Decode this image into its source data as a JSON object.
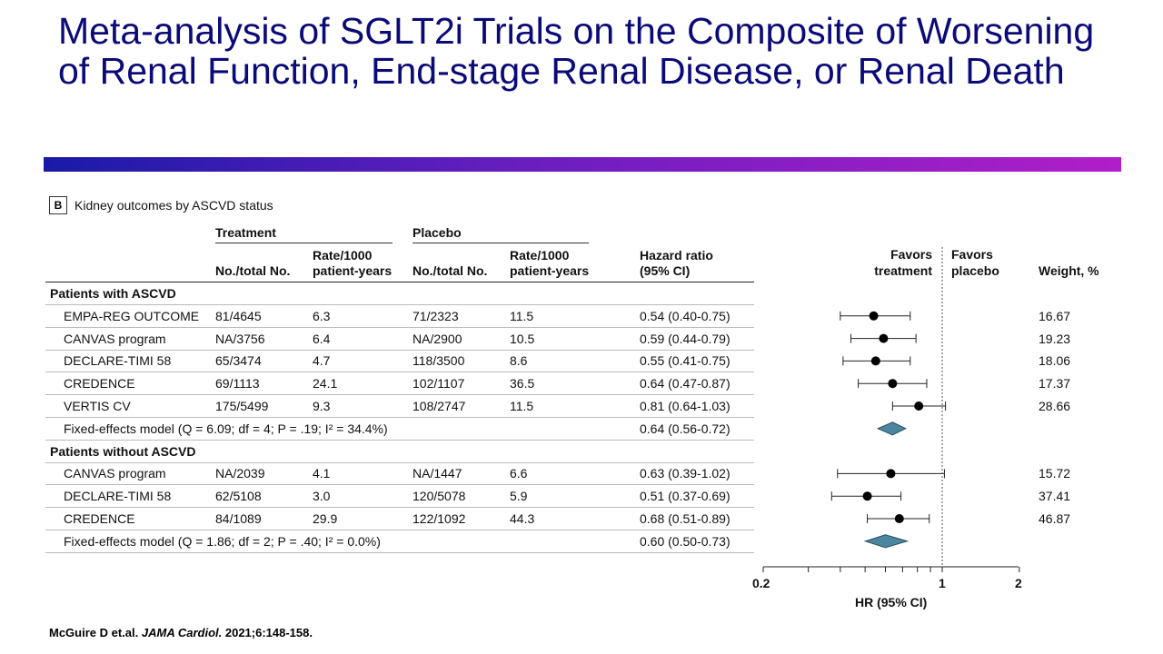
{
  "title": "Meta-analysis of SGLT2i Trials on the Composite of Worsening of Renal Function, End-stage Renal Disease, or Renal Death",
  "panel": {
    "letter": "B",
    "title": "Kidney outcomes by ASCVD status"
  },
  "headers": {
    "treatment": "Treatment",
    "placebo": "Placebo",
    "no_total": "No./total No.",
    "rate1": "Rate/1000",
    "rate2": "patient-years",
    "hr1": "Hazard ratio",
    "hr2": "(95% CI)",
    "favors_treatment1": "Favors",
    "favors_treatment2": "treatment",
    "favors_placebo1": "Favors",
    "favors_placebo2": "placebo",
    "weight": "Weight, %"
  },
  "citation": {
    "authors": "McGuire D et.al.",
    "journal": "JAMA Cardiol.",
    "ref": "2021;6:148-158."
  },
  "colors": {
    "title": "#0a0a78",
    "diamond": "#4a86a0"
  },
  "chart_data": {
    "type": "forest",
    "xlabel": "HR (95% CI)",
    "xscale": "log",
    "xlim": [
      0.2,
      2
    ],
    "xticks": [
      0.2,
      0.3,
      0.4,
      0.5,
      0.6,
      0.7,
      0.8,
      0.9,
      1,
      2
    ],
    "xtick_labels": [
      "0.2",
      "1",
      "2"
    ],
    "reference_line": 1,
    "rows": [
      {
        "kind": "group",
        "label": "Patients with ASCVD"
      },
      {
        "kind": "study",
        "label": "EMPA-REG OUTCOME",
        "t_n": "81/4645",
        "t_rate": "6.3",
        "p_n": "71/2323",
        "p_rate": "11.5",
        "hr_text": "0.54 (0.40-0.75)",
        "hr": 0.54,
        "lo": 0.4,
        "hi": 0.75,
        "weight": "16.67"
      },
      {
        "kind": "study",
        "label": "CANVAS program",
        "t_n": "NA/3756",
        "t_rate": "6.4",
        "p_n": "NA/2900",
        "p_rate": "10.5",
        "hr_text": "0.59 (0.44-0.79)",
        "hr": 0.59,
        "lo": 0.44,
        "hi": 0.79,
        "weight": "19.23"
      },
      {
        "kind": "study",
        "label": "DECLARE-TIMI 58",
        "t_n": "65/3474",
        "t_rate": "4.7",
        "p_n": "118/3500",
        "p_rate": "8.6",
        "hr_text": "0.55 (0.41-0.75)",
        "hr": 0.55,
        "lo": 0.41,
        "hi": 0.75,
        "weight": "18.06"
      },
      {
        "kind": "study",
        "label": "CREDENCE",
        "t_n": "69/1113",
        "t_rate": "24.1",
        "p_n": "102/1107",
        "p_rate": "36.5",
        "hr_text": "0.64 (0.47-0.87)",
        "hr": 0.64,
        "lo": 0.47,
        "hi": 0.87,
        "weight": "17.37"
      },
      {
        "kind": "study",
        "label": "VERTIS CV",
        "t_n": "175/5499",
        "t_rate": "9.3",
        "p_n": "108/2747",
        "p_rate": "11.5",
        "hr_text": "0.81 (0.64-1.03)",
        "hr": 0.81,
        "lo": 0.64,
        "hi": 1.03,
        "weight": "28.66"
      },
      {
        "kind": "pooled",
        "label": "Fixed-effects model (Q = 6.09; df = 4; P = .19; I² = 34.4%)",
        "hr_text": "0.64 (0.56-0.72)",
        "hr": 0.64,
        "lo": 0.56,
        "hi": 0.72
      },
      {
        "kind": "group",
        "label": "Patients without ASCVD"
      },
      {
        "kind": "study",
        "label": "CANVAS program",
        "t_n": "NA/2039",
        "t_rate": "4.1",
        "p_n": "NA/1447",
        "p_rate": "6.6",
        "hr_text": "0.63 (0.39-1.02)",
        "hr": 0.63,
        "lo": 0.39,
        "hi": 1.02,
        "weight": "15.72"
      },
      {
        "kind": "study",
        "label": "DECLARE-TIMI 58",
        "t_n": "62/5108",
        "t_rate": "3.0",
        "p_n": "120/5078",
        "p_rate": "5.9",
        "hr_text": "0.51 (0.37-0.69)",
        "hr": 0.51,
        "lo": 0.37,
        "hi": 0.69,
        "weight": "37.41"
      },
      {
        "kind": "study",
        "label": "CREDENCE",
        "t_n": "84/1089",
        "t_rate": "29.9",
        "p_n": "122/1092",
        "p_rate": "44.3",
        "hr_text": "0.68 (0.51-0.89)",
        "hr": 0.68,
        "lo": 0.51,
        "hi": 0.89,
        "weight": "46.87"
      },
      {
        "kind": "pooled",
        "label": "Fixed-effects model (Q = 1.86; df = 2; P = .40; I² = 0.0%)",
        "hr_text": "0.60 (0.50-0.73)",
        "hr": 0.6,
        "lo": 0.5,
        "hi": 0.73
      }
    ]
  }
}
